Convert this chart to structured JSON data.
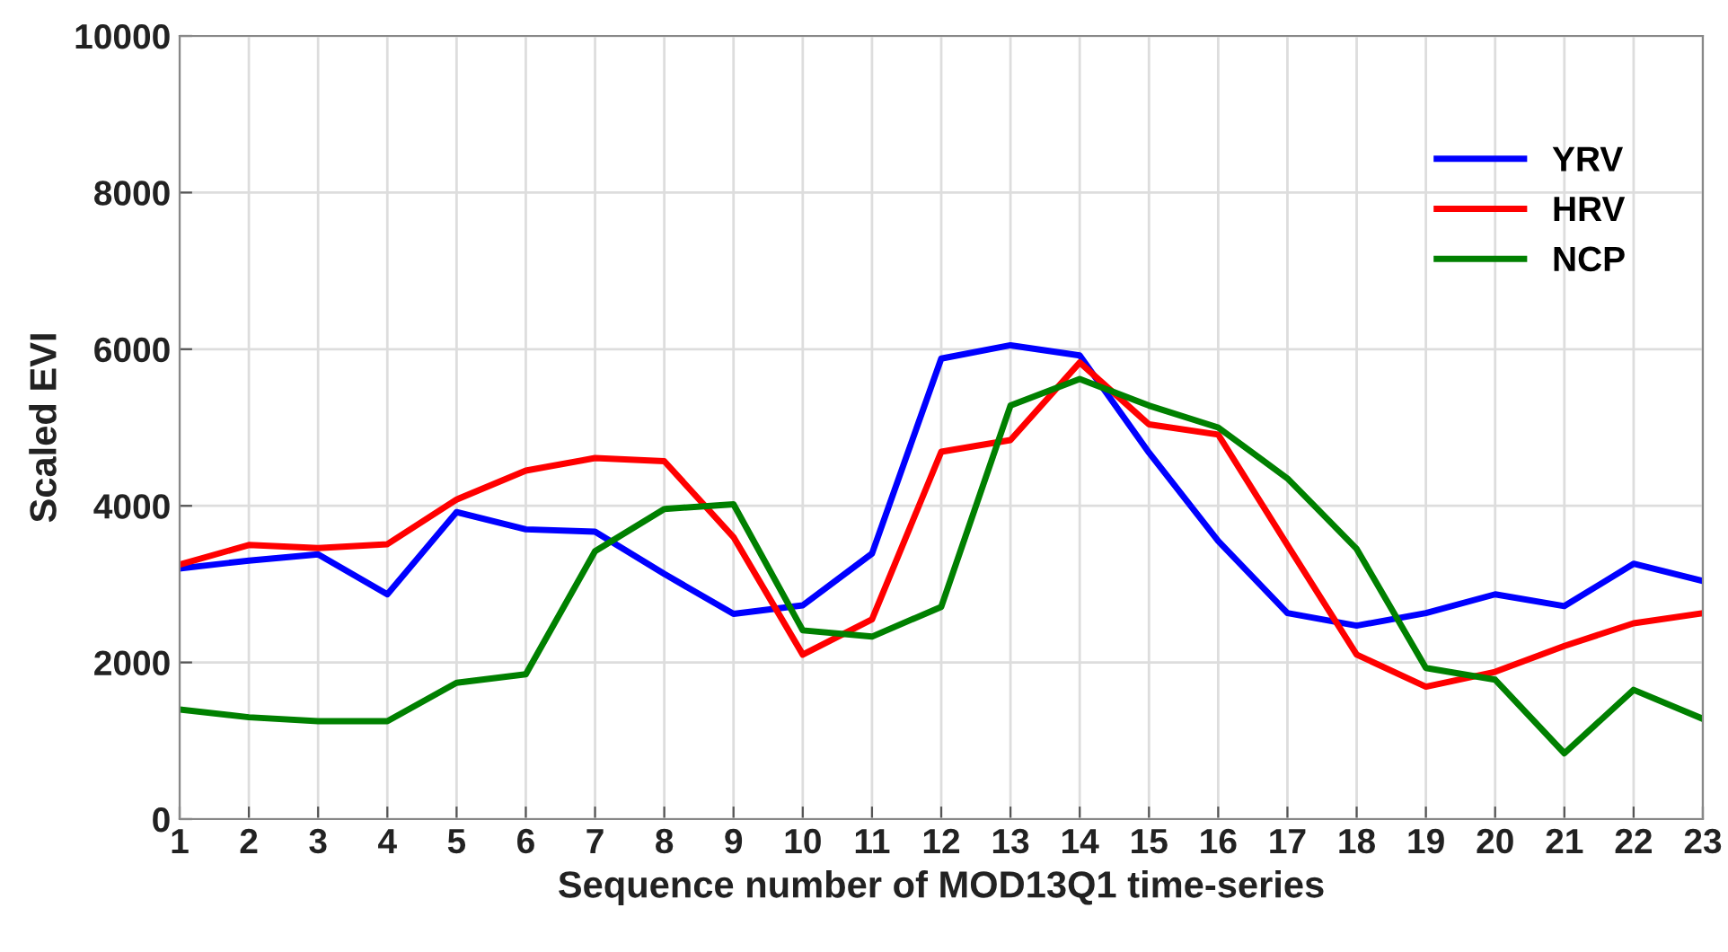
{
  "chart_data": {
    "type": "line",
    "xlabel": "Sequence number of MOD13Q1 time-series",
    "ylabel": "Scaled EVI",
    "x": [
      1,
      2,
      3,
      4,
      5,
      6,
      7,
      8,
      9,
      10,
      11,
      12,
      13,
      14,
      15,
      16,
      17,
      18,
      19,
      20,
      21,
      22,
      23
    ],
    "xlim": [
      1,
      23
    ],
    "xticks": [
      1,
      2,
      3,
      4,
      5,
      6,
      7,
      8,
      9,
      10,
      11,
      12,
      13,
      14,
      15,
      16,
      17,
      18,
      19,
      20,
      21,
      22,
      23
    ],
    "ylim": [
      0,
      10000
    ],
    "yticks": [
      0,
      2000,
      4000,
      6000,
      8000,
      10000
    ],
    "grid": true,
    "legend": "top right",
    "series": [
      {
        "name": "YRV",
        "color": "#0000ff",
        "values": [
          3200,
          3300,
          3380,
          2870,
          3920,
          3700,
          3670,
          3130,
          2620,
          2730,
          3390,
          5880,
          6050,
          5920,
          4680,
          3550,
          2630,
          2470,
          2630,
          2870,
          2720,
          3260,
          3040
        ]
      },
      {
        "name": "HRV",
        "color": "#ff0000",
        "values": [
          3250,
          3500,
          3460,
          3510,
          4080,
          4450,
          4610,
          4570,
          3600,
          2100,
          2550,
          4690,
          4840,
          5830,
          5040,
          4910,
          3500,
          2100,
          1690,
          1880,
          2210,
          2500,
          2630
        ]
      },
      {
        "name": "NCP",
        "color": "#008000",
        "values": [
          1400,
          1300,
          1250,
          1250,
          1740,
          1850,
          3420,
          3960,
          4020,
          2410,
          2330,
          2710,
          5280,
          5620,
          5280,
          5000,
          4350,
          3450,
          1930,
          1780,
          840,
          1650,
          1280
        ]
      }
    ]
  }
}
